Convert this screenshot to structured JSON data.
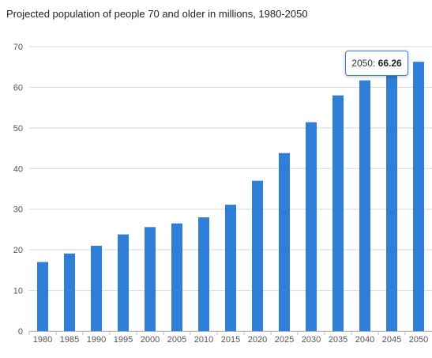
{
  "chart_data": {
    "type": "bar",
    "title": "Projected population of people 70 and older in millions, 1980-2050",
    "xlabel": "",
    "ylabel": "",
    "categories": [
      "1980",
      "1985",
      "1990",
      "1995",
      "2000",
      "2005",
      "2010",
      "2015",
      "2020",
      "2025",
      "2030",
      "2035",
      "2040",
      "2045",
      "2050"
    ],
    "values": [
      17.0,
      19.1,
      21.0,
      23.8,
      25.6,
      26.5,
      28.0,
      31.1,
      37.0,
      43.8,
      51.4,
      58.0,
      61.7,
      64.0,
      66.26
    ],
    "ylim": [
      0,
      70
    ],
    "yticks": [
      "0",
      "10",
      "20",
      "30",
      "40",
      "50",
      "60",
      "70"
    ],
    "grid": true,
    "bar_color": "#2f7ed8",
    "tooltip": {
      "category": "2050",
      "separator": ":",
      "value": "66.26"
    }
  }
}
